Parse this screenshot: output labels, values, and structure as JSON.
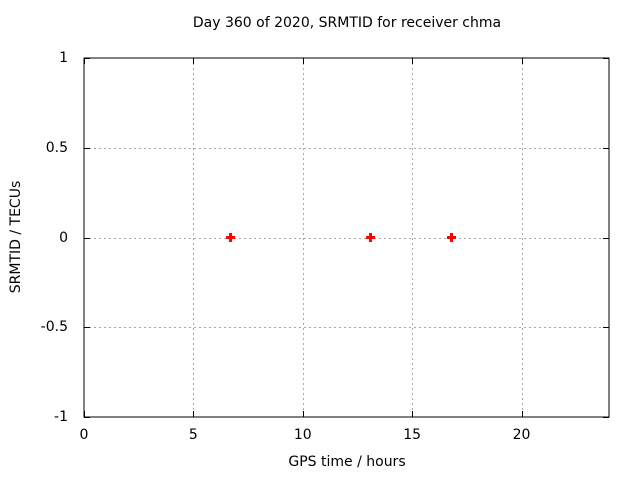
{
  "title": "Day 360 of 2020, SRMTID for receiver chma",
  "chart_data": {
    "type": "scatter",
    "title": "Day 360 of 2020, SRMTID for receiver chma",
    "xlabel": "GPS time / hours",
    "ylabel": "SRMTID / TECUs",
    "xlim": [
      0,
      24
    ],
    "ylim": [
      -1,
      1
    ],
    "xticks": [
      0,
      5,
      10,
      15,
      20
    ],
    "yticks": [
      1,
      0.5,
      0,
      -0.5,
      -1
    ],
    "grid": true,
    "grid_style": "dashed",
    "legend": false,
    "marker": "plus",
    "marker_size": 9,
    "marker_color": "#ff0000",
    "grid_color": "#a8a8a8",
    "axis_color": "#000000",
    "background_color": "#ffffff",
    "series": [
      {
        "name": "SRMTID",
        "x": [
          6.7,
          13.1,
          16.8
        ],
        "y": [
          0,
          0,
          0
        ]
      }
    ]
  }
}
